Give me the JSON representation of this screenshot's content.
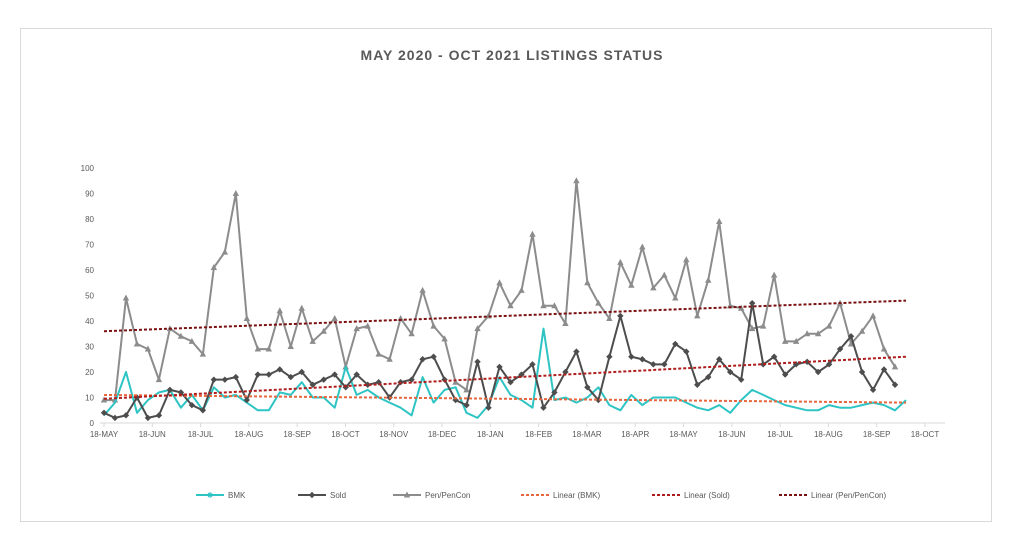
{
  "chart_data": {
    "type": "line",
    "title": "MAY 2020 - OCT 2021 LISTINGS STATUS",
    "xlabel": "",
    "ylabel": "",
    "ylim": [
      0,
      100
    ],
    "yticks": [
      0,
      10,
      20,
      30,
      40,
      50,
      60,
      70,
      80,
      90,
      100
    ],
    "x_tick_labels": [
      "18-MAY",
      "18-JUN",
      "18-JUL",
      "18-AUG",
      "18-SEP",
      "18-OCT",
      "18-NOV",
      "18-DEC",
      "18-JAN",
      "18-FEB",
      "18-MAR",
      "18-APR",
      "18-MAY",
      "18-JUN",
      "18-JUL",
      "18-AUG",
      "18-SEP",
      "18-OCT"
    ],
    "colors": {
      "BMK": "#2ec4c4",
      "Sold": "#4d4d4d",
      "PenPenCon": "#8c8c8c",
      "LinearBMK": "#e8663d",
      "LinearSold": "#b01c1c",
      "LinearPen": "#7a1010"
    },
    "legend_position": "bottom",
    "series": [
      {
        "name": "BMK",
        "values": [
          3,
          8,
          20,
          4,
          9,
          12,
          13,
          6,
          11,
          5,
          14,
          10,
          11,
          8,
          5,
          5,
          12,
          11,
          16,
          10,
          10,
          6,
          22,
          11,
          13,
          10,
          8,
          6,
          3,
          18,
          8,
          13,
          14,
          4,
          2,
          7,
          18,
          11,
          9,
          6,
          37,
          9,
          10,
          8,
          10,
          14,
          7,
          5,
          11,
          7,
          10,
          10,
          10,
          8,
          6,
          5,
          7,
          4,
          9,
          13,
          11,
          9,
          7,
          6,
          5,
          5,
          7,
          6,
          6,
          7,
          8,
          7,
          5,
          9
        ]
      },
      {
        "name": "Sold",
        "values": [
          4,
          2,
          3,
          10,
          2,
          3,
          13,
          12,
          7,
          5,
          17,
          17,
          18,
          9,
          19,
          19,
          21,
          18,
          20,
          15,
          17,
          19,
          14,
          19,
          15,
          16,
          10,
          16,
          17,
          25,
          26,
          17,
          9,
          7,
          24,
          6,
          22,
          16,
          19,
          23,
          6,
          12,
          20,
          28,
          14,
          9,
          26,
          42,
          26,
          25,
          23,
          23,
          31,
          28,
          15,
          18,
          25,
          20,
          17,
          47,
          23,
          26,
          19,
          23,
          24,
          20,
          23,
          29,
          34,
          20,
          13,
          21,
          15
        ]
      },
      {
        "name": "Pen/PenCon",
        "values": [
          9,
          9,
          49,
          31,
          29,
          17,
          37,
          34,
          32,
          27,
          61,
          67,
          90,
          41,
          29,
          29,
          44,
          30,
          45,
          32,
          36,
          41,
          22,
          37,
          38,
          27,
          25,
          41,
          35,
          52,
          38,
          33,
          16,
          13,
          37,
          42,
          55,
          46,
          52,
          74,
          46,
          46,
          39,
          95,
          55,
          47,
          41,
          63,
          54,
          69,
          53,
          58,
          49,
          64,
          42,
          56,
          79,
          46,
          45,
          37,
          38,
          58,
          32,
          32,
          35,
          35,
          38,
          47,
          31,
          36,
          42,
          29,
          22
        ]
      }
    ],
    "trendlines": [
      {
        "name": "Linear (BMK)",
        "start": 11,
        "end": 8
      },
      {
        "name": "Linear (Sold)",
        "start": 9.5,
        "end": 26
      },
      {
        "name": "Linear (Pen/PenCon)",
        "start": 36,
        "end": 48
      }
    ]
  }
}
